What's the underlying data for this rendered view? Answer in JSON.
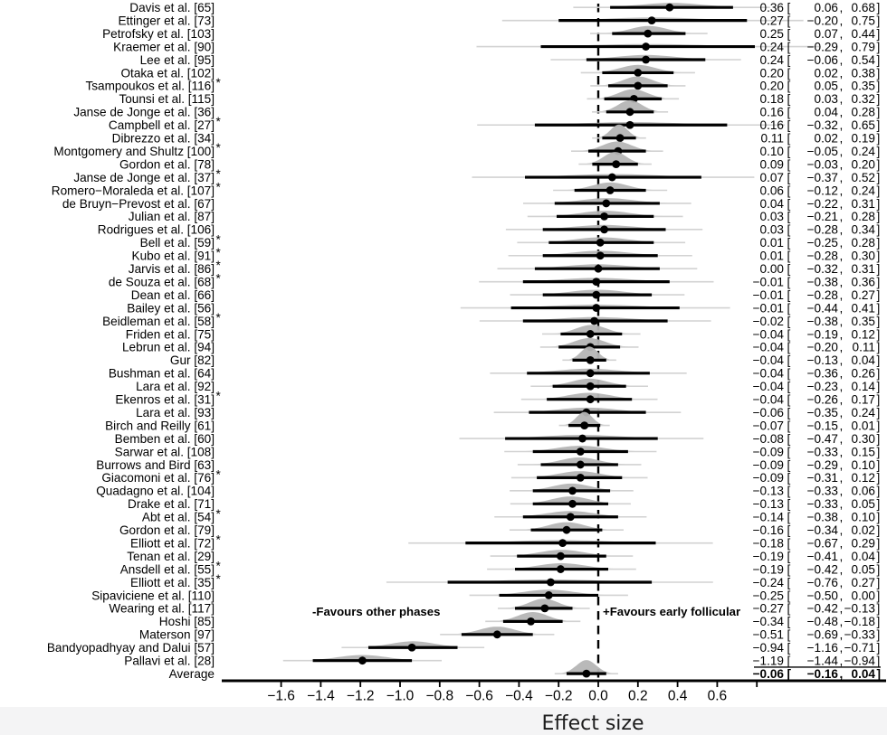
{
  "chart_data": {
    "type": "forest",
    "xlabel": "Effect size",
    "x_tick_values": [
      -1.6,
      -1.4,
      -1.2,
      -1.0,
      -0.8,
      -0.6,
      -0.4,
      -0.2,
      0.0,
      0.2,
      0.4,
      0.6
    ],
    "x_unlabeled_tick_values": [
      0.8
    ],
    "zero_reference": 0.0,
    "annotation_left": "-Favours other phases",
    "annotation_right": "+Favours early follicular",
    "star_symbol": "*",
    "studies": [
      {
        "label": "Davis et al. [65]",
        "star": false,
        "est": 0.36,
        "lo": 0.06,
        "hi": 0.68
      },
      {
        "label": "Ettinger et al. [73]",
        "star": false,
        "est": 0.27,
        "lo": -0.2,
        "hi": 0.75
      },
      {
        "label": "Petrofsky et al. [103]",
        "star": false,
        "est": 0.25,
        "lo": 0.07,
        "hi": 0.44
      },
      {
        "label": "Kraemer et al. [90]",
        "star": false,
        "est": 0.24,
        "lo": -0.29,
        "hi": 0.79
      },
      {
        "label": "Lee et al. [95]",
        "star": false,
        "est": 0.24,
        "lo": -0.06,
        "hi": 0.54
      },
      {
        "label": "Otaka et al. [102]",
        "star": false,
        "est": 0.2,
        "lo": 0.02,
        "hi": 0.38
      },
      {
        "label": "Tsampoukos et al. [116]",
        "star": true,
        "est": 0.2,
        "lo": 0.05,
        "hi": 0.35
      },
      {
        "label": "Tounsi et al. [115]",
        "star": false,
        "est": 0.18,
        "lo": 0.03,
        "hi": 0.32
      },
      {
        "label": "Janse de Jonge et al. [36]",
        "star": false,
        "est": 0.16,
        "lo": 0.04,
        "hi": 0.28
      },
      {
        "label": "Campbell et al. [27]",
        "star": true,
        "est": 0.16,
        "lo": -0.32,
        "hi": 0.65
      },
      {
        "label": "Dibrezzo et al. [34]",
        "star": false,
        "est": 0.11,
        "lo": 0.02,
        "hi": 0.19
      },
      {
        "label": "Montgomery and Shultz [100]",
        "star": true,
        "est": 0.1,
        "lo": -0.05,
        "hi": 0.24
      },
      {
        "label": "Gordon et al. [78]",
        "star": false,
        "est": 0.09,
        "lo": -0.03,
        "hi": 0.2
      },
      {
        "label": "Janse de Jonge et al. [37]",
        "star": true,
        "est": 0.07,
        "lo": -0.37,
        "hi": 0.52
      },
      {
        "label": "Romero−Moraleda et al. [107]",
        "star": true,
        "est": 0.06,
        "lo": -0.12,
        "hi": 0.24
      },
      {
        "label": "de Bruyn−Prevost et al. [67]",
        "star": false,
        "est": 0.04,
        "lo": -0.22,
        "hi": 0.31
      },
      {
        "label": "Julian et al. [87]",
        "star": false,
        "est": 0.03,
        "lo": -0.21,
        "hi": 0.28
      },
      {
        "label": "Rodrigues et al. [106]",
        "star": false,
        "est": 0.03,
        "lo": -0.28,
        "hi": 0.34
      },
      {
        "label": "Bell et al. [59]",
        "star": true,
        "est": 0.01,
        "lo": -0.25,
        "hi": 0.28
      },
      {
        "label": "Kubo et al. [91]",
        "star": true,
        "est": 0.01,
        "lo": -0.28,
        "hi": 0.3
      },
      {
        "label": "Jarvis et al. [86]",
        "star": true,
        "est": 0.0,
        "lo": -0.32,
        "hi": 0.31
      },
      {
        "label": "de Souza et al. [68]",
        "star": true,
        "est": -0.01,
        "lo": -0.38,
        "hi": 0.36
      },
      {
        "label": "Dean et al. [66]",
        "star": false,
        "est": -0.01,
        "lo": -0.28,
        "hi": 0.27
      },
      {
        "label": "Bailey et al. [56]",
        "star": false,
        "est": -0.01,
        "lo": -0.44,
        "hi": 0.41
      },
      {
        "label": "Beidleman et al. [58]",
        "star": true,
        "est": -0.02,
        "lo": -0.38,
        "hi": 0.35
      },
      {
        "label": "Friden et al. [75]",
        "star": false,
        "est": -0.04,
        "lo": -0.19,
        "hi": 0.12
      },
      {
        "label": "Lebrun et al. [94]",
        "star": false,
        "est": -0.04,
        "lo": -0.2,
        "hi": 0.11
      },
      {
        "label": "Gur [82]",
        "star": false,
        "est": -0.04,
        "lo": -0.13,
        "hi": 0.04
      },
      {
        "label": "Bushman et al. [64]",
        "star": false,
        "est": -0.04,
        "lo": -0.36,
        "hi": 0.26
      },
      {
        "label": "Lara et al. [92]",
        "star": false,
        "est": -0.04,
        "lo": -0.23,
        "hi": 0.14
      },
      {
        "label": "Ekenros et al. [31]",
        "star": true,
        "est": -0.04,
        "lo": -0.26,
        "hi": 0.17
      },
      {
        "label": "Lara et al. [93]",
        "star": false,
        "est": -0.06,
        "lo": -0.35,
        "hi": 0.24
      },
      {
        "label": "Birch and Reilly [61]",
        "star": false,
        "est": -0.07,
        "lo": -0.15,
        "hi": 0.01
      },
      {
        "label": "Bemben et al. [60]",
        "star": false,
        "est": -0.08,
        "lo": -0.47,
        "hi": 0.3
      },
      {
        "label": "Sarwar et al. [108]",
        "star": false,
        "est": -0.09,
        "lo": -0.33,
        "hi": 0.15
      },
      {
        "label": "Burrows and Bird [63]",
        "star": false,
        "est": -0.09,
        "lo": -0.29,
        "hi": 0.1
      },
      {
        "label": "Giacomoni et al. [76]",
        "star": true,
        "est": -0.09,
        "lo": -0.31,
        "hi": 0.12
      },
      {
        "label": "Quadagno et al. [104]",
        "star": false,
        "est": -0.13,
        "lo": -0.33,
        "hi": 0.06
      },
      {
        "label": "Drake et al. [71]",
        "star": false,
        "est": -0.13,
        "lo": -0.33,
        "hi": 0.05
      },
      {
        "label": "Abt et al. [54]",
        "star": true,
        "est": -0.14,
        "lo": -0.38,
        "hi": 0.1
      },
      {
        "label": "Gordon et al. [79]",
        "star": false,
        "est": -0.16,
        "lo": -0.34,
        "hi": 0.02
      },
      {
        "label": "Elliott et al. [72]",
        "star": true,
        "est": -0.18,
        "lo": -0.67,
        "hi": 0.29
      },
      {
        "label": "Tenan et al. [29]",
        "star": false,
        "est": -0.19,
        "lo": -0.41,
        "hi": 0.04
      },
      {
        "label": "Ansdell et al. [55]",
        "star": true,
        "est": -0.19,
        "lo": -0.42,
        "hi": 0.05
      },
      {
        "label": "Elliott et al. [35]",
        "star": true,
        "est": -0.24,
        "lo": -0.76,
        "hi": 0.27
      },
      {
        "label": "Sipaviciene et al. [110]",
        "star": false,
        "est": -0.25,
        "lo": -0.5,
        "hi": 0.0
      },
      {
        "label": "Wearing et al. [117]",
        "star": false,
        "est": -0.27,
        "lo": -0.42,
        "hi": -0.13
      },
      {
        "label": "Hoshi [85]",
        "star": false,
        "est": -0.34,
        "lo": -0.48,
        "hi": -0.18
      },
      {
        "label": "Materson [97]",
        "star": false,
        "est": -0.51,
        "lo": -0.69,
        "hi": -0.33
      },
      {
        "label": "Bandyopadhyay and Dalui [57]",
        "star": false,
        "est": -0.94,
        "lo": -1.16,
        "hi": -0.71
      },
      {
        "label": "Pallavi et al. [28]",
        "star": false,
        "est": -1.19,
        "lo": -1.44,
        "hi": -0.94
      },
      {
        "label": "Average",
        "star": false,
        "est": -0.06,
        "lo": -0.16,
        "hi": 0.04,
        "summary": true
      }
    ]
  },
  "colors": {
    "background": "#ffffff",
    "footer_band": "#f4f4f5",
    "text": "#000000",
    "ci_line": "#000000",
    "outer_line": "#d2d2d2",
    "violin": "#b5b5b5",
    "axis": "#000000"
  }
}
